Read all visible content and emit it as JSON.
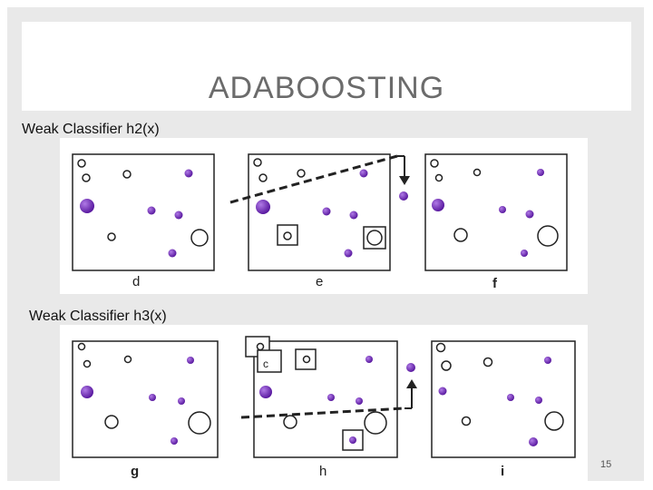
{
  "slide": {
    "title": "ADABOOSTING",
    "page_number": "15"
  },
  "sections": [
    {
      "label": "Weak Classifier h2(x)",
      "subfigures": [
        "d",
        "e",
        "f"
      ]
    },
    {
      "label": "Weak Classifier h3(x)",
      "subfigures": [
        "g",
        "h",
        "i"
      ]
    }
  ],
  "colors": {
    "negative": "#ffffff",
    "positive": "#7b2fc8",
    "outline": "#222222",
    "frame": "#e9e9e9"
  }
}
